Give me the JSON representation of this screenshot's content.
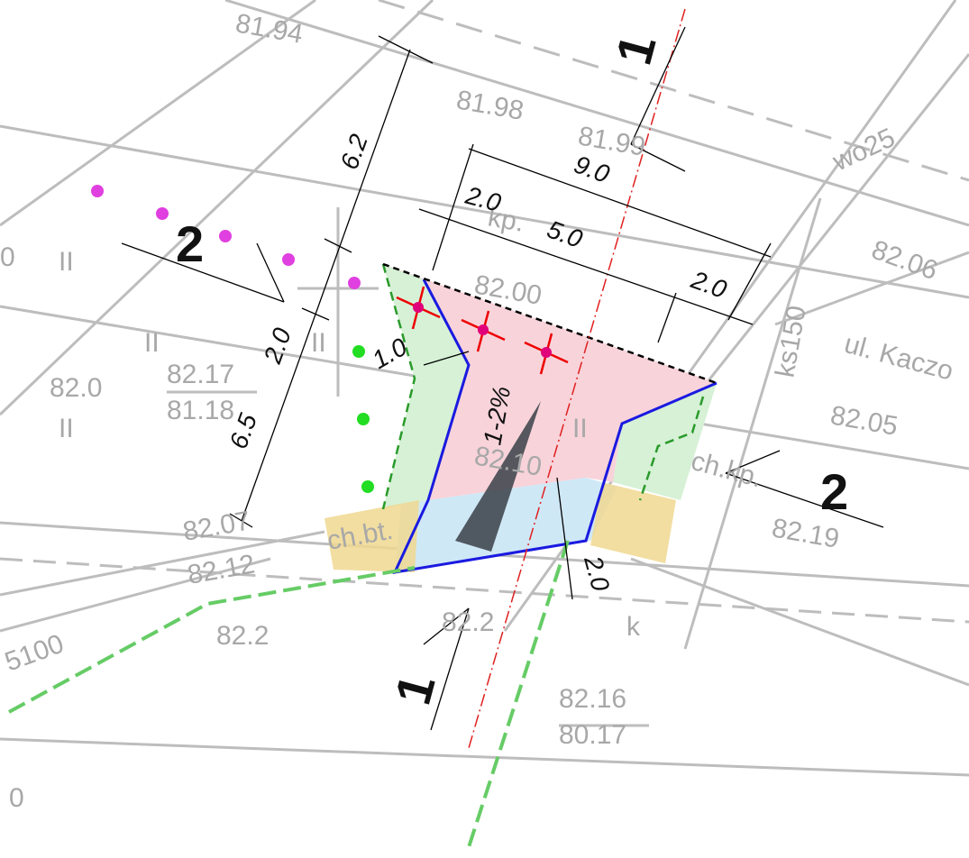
{
  "map_labels": [
    "81.94",
    "81.98",
    "81.99",
    "wo25",
    "kp.",
    "82.06",
    "82.00",
    "ul. Kaczo",
    "ks150",
    "82.0",
    "82.17",
    "81.18",
    "82.05",
    "ch.kp.",
    "82.10",
    "82.07",
    "82.12",
    "ch.bt.",
    "82.19",
    "82.2",
    "82.2",
    "k",
    "82.16",
    "80.17",
    "5100",
    "0",
    "0",
    "II",
    "II",
    "II",
    "II",
    "II"
  ],
  "dimensions": [
    "6.2",
    "2.0",
    "6.5",
    "9.0",
    "2.0",
    "5.0",
    "2.0",
    "1.0",
    "2.0"
  ],
  "sections": [
    "1",
    "1",
    "2",
    "2"
  ],
  "slope": "1-2%"
}
